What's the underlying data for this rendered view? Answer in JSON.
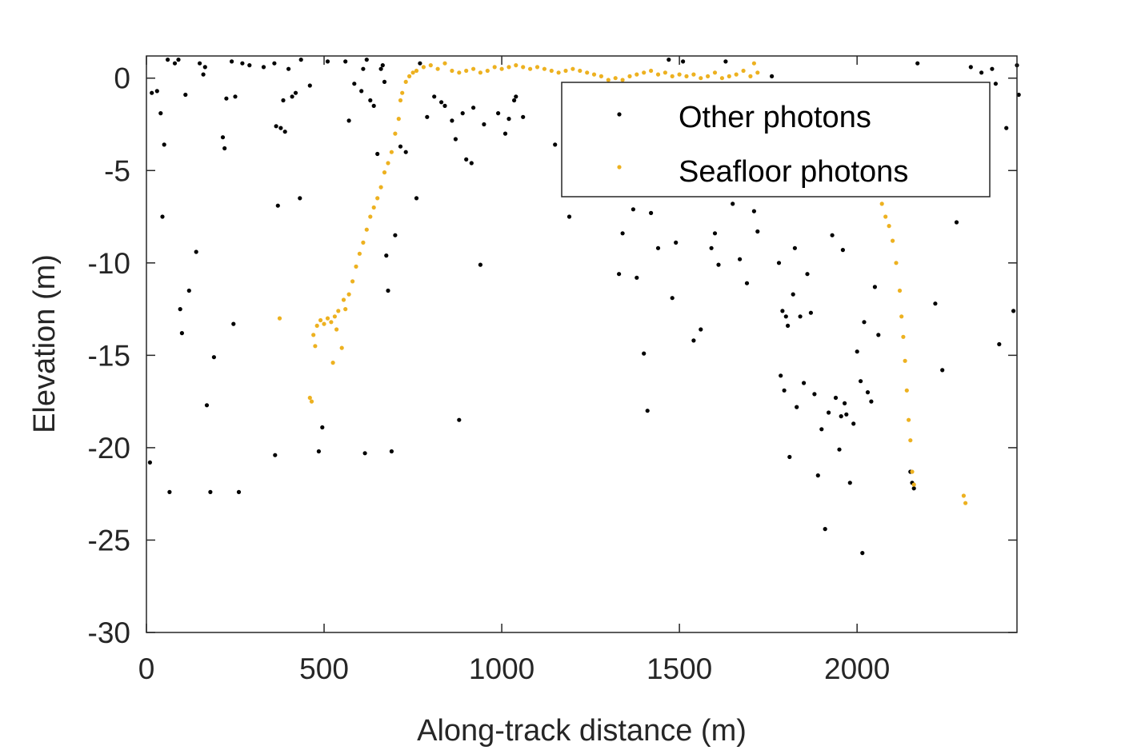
{
  "chart_data": {
    "type": "scatter",
    "title": "",
    "xlabel": "Along-track distance (m)",
    "ylabel": "Elevation (m)",
    "xlim": [
      0,
      2450
    ],
    "ylim": [
      -30,
      1.2
    ],
    "xticks": [
      0,
      500,
      1000,
      1500,
      2000
    ],
    "yticks": [
      0,
      -5,
      -10,
      -15,
      -20,
      -25,
      -30
    ],
    "grid": false,
    "legend_position": "top-right",
    "series": [
      {
        "name": "Other photons",
        "color": "#000000",
        "points": [
          [
            10,
            -20.8
          ],
          [
            15,
            -0.8
          ],
          [
            30,
            -0.7
          ],
          [
            40,
            -1.9
          ],
          [
            45,
            -7.5
          ],
          [
            50,
            -3.6
          ],
          [
            60,
            1.0
          ],
          [
            65,
            -22.4
          ],
          [
            80,
            0.8
          ],
          [
            90,
            1.0
          ],
          [
            95,
            -12.5
          ],
          [
            100,
            -13.8
          ],
          [
            110,
            -0.9
          ],
          [
            120,
            -11.5
          ],
          [
            140,
            -9.4
          ],
          [
            150,
            0.8
          ],
          [
            160,
            0.2
          ],
          [
            165,
            0.6
          ],
          [
            170,
            -17.7
          ],
          [
            180,
            -22.4
          ],
          [
            190,
            -15.1
          ],
          [
            215,
            -3.2
          ],
          [
            220,
            -3.8
          ],
          [
            225,
            -1.1
          ],
          [
            240,
            0.9
          ],
          [
            245,
            -13.3
          ],
          [
            250,
            -1.0
          ],
          [
            260,
            -22.4
          ],
          [
            270,
            0.8
          ],
          [
            290,
            0.7
          ],
          [
            330,
            0.6
          ],
          [
            360,
            0.8
          ],
          [
            362,
            -20.4
          ],
          [
            365,
            -2.6
          ],
          [
            370,
            -6.9
          ],
          [
            378,
            -2.7
          ],
          [
            385,
            -1.2
          ],
          [
            390,
            -2.9
          ],
          [
            400,
            0.5
          ],
          [
            410,
            -1.0
          ],
          [
            420,
            -0.8
          ],
          [
            432,
            -6.5
          ],
          [
            435,
            1.0
          ],
          [
            460,
            -0.4
          ],
          [
            485,
            -20.2
          ],
          [
            495,
            -18.9
          ],
          [
            510,
            0.9
          ],
          [
            560,
            0.9
          ],
          [
            570,
            -2.3
          ],
          [
            585,
            -0.3
          ],
          [
            605,
            -0.7
          ],
          [
            610,
            0.5
          ],
          [
            615,
            -20.3
          ],
          [
            620,
            1.0
          ],
          [
            630,
            -1.2
          ],
          [
            640,
            -1.5
          ],
          [
            650,
            -4.1
          ],
          [
            660,
            0.5
          ],
          [
            665,
            0.7
          ],
          [
            670,
            -0.2
          ],
          [
            675,
            -9.6
          ],
          [
            680,
            -11.5
          ],
          [
            690,
            -20.2
          ],
          [
            700,
            -8.5
          ],
          [
            715,
            -3.7
          ],
          [
            730,
            -4.0
          ],
          [
            760,
            -6.5
          ],
          [
            770,
            0.8
          ],
          [
            790,
            -2.1
          ],
          [
            810,
            -1.0
          ],
          [
            830,
            -1.3
          ],
          [
            840,
            -1.5
          ],
          [
            860,
            -2.3
          ],
          [
            870,
            -3.3
          ],
          [
            880,
            -18.5
          ],
          [
            890,
            -1.9
          ],
          [
            900,
            -4.4
          ],
          [
            915,
            -4.6
          ],
          [
            920,
            -1.6
          ],
          [
            940,
            -10.1
          ],
          [
            950,
            -2.5
          ],
          [
            990,
            -1.9
          ],
          [
            1010,
            -3.0
          ],
          [
            1020,
            -2.2
          ],
          [
            1035,
            -1.2
          ],
          [
            1040,
            -1.0
          ],
          [
            1060,
            -2.1
          ],
          [
            1150,
            -3.6
          ],
          [
            1190,
            -7.5
          ],
          [
            1330,
            -10.6
          ],
          [
            1340,
            -8.4
          ],
          [
            1370,
            -7.1
          ],
          [
            1380,
            -10.8
          ],
          [
            1400,
            -14.9
          ],
          [
            1410,
            -18.0
          ],
          [
            1420,
            -7.3
          ],
          [
            1440,
            -9.2
          ],
          [
            1470,
            1.0
          ],
          [
            1480,
            -11.9
          ],
          [
            1490,
            -8.9
          ],
          [
            1510,
            0.9
          ],
          [
            1540,
            -14.2
          ],
          [
            1560,
            -13.6
          ],
          [
            1590,
            -9.2
          ],
          [
            1600,
            -8.4
          ],
          [
            1610,
            -10.1
          ],
          [
            1630,
            0.9
          ],
          [
            1650,
            -6.8
          ],
          [
            1670,
            -9.8
          ],
          [
            1690,
            -11.1
          ],
          [
            1710,
            -7.2
          ],
          [
            1720,
            -8.3
          ],
          [
            1740,
            -1.3
          ],
          [
            1760,
            0.1
          ],
          [
            1780,
            -10.0
          ],
          [
            1785,
            -16.1
          ],
          [
            1790,
            -12.6
          ],
          [
            1795,
            -16.9
          ],
          [
            1800,
            -12.9
          ],
          [
            1805,
            -13.4
          ],
          [
            1810,
            -20.5
          ],
          [
            1820,
            -11.7
          ],
          [
            1825,
            -9.2
          ],
          [
            1830,
            -17.8
          ],
          [
            1840,
            -12.9
          ],
          [
            1850,
            -16.5
          ],
          [
            1860,
            -10.6
          ],
          [
            1870,
            -12.7
          ],
          [
            1880,
            -17.1
          ],
          [
            1890,
            -21.5
          ],
          [
            1900,
            -19.0
          ],
          [
            1910,
            -24.4
          ],
          [
            1920,
            -18.1
          ],
          [
            1930,
            -8.5
          ],
          [
            1940,
            -17.3
          ],
          [
            1950,
            -20.1
          ],
          [
            1955,
            -18.3
          ],
          [
            1960,
            -9.3
          ],
          [
            1965,
            -17.6
          ],
          [
            1970,
            -18.2
          ],
          [
            1980,
            -21.9
          ],
          [
            1990,
            -18.7
          ],
          [
            2000,
            -14.8
          ],
          [
            2010,
            -16.4
          ],
          [
            2015,
            -25.7
          ],
          [
            2020,
            -13.2
          ],
          [
            2030,
            -17.0
          ],
          [
            2040,
            -17.5
          ],
          [
            2050,
            -11.3
          ],
          [
            2060,
            -13.9
          ],
          [
            2070,
            -3.1
          ],
          [
            2080,
            -0.9
          ],
          [
            2100,
            -2.1
          ],
          [
            2150,
            -21.3
          ],
          [
            2155,
            -21.9
          ],
          [
            2160,
            -22.2
          ],
          [
            2170,
            0.8
          ],
          [
            2220,
            -12.2
          ],
          [
            2240,
            -15.8
          ],
          [
            2280,
            -7.8
          ],
          [
            2320,
            0.6
          ],
          [
            2350,
            0.3
          ],
          [
            2380,
            0.5
          ],
          [
            2390,
            -0.3
          ],
          [
            2400,
            -14.4
          ],
          [
            2420,
            -2.7
          ],
          [
            2440,
            -12.6
          ],
          [
            2450,
            0.7
          ],
          [
            2455,
            -0.9
          ]
        ]
      },
      {
        "name": "Seafloor photons",
        "color": "#EDB120",
        "points": [
          [
            375,
            -13.0
          ],
          [
            460,
            -17.3
          ],
          [
            465,
            -17.5
          ],
          [
            470,
            -13.9
          ],
          [
            475,
            -14.5
          ],
          [
            480,
            -13.4
          ],
          [
            490,
            -13.1
          ],
          [
            500,
            -13.3
          ],
          [
            510,
            -13.0
          ],
          [
            520,
            -13.2
          ],
          [
            525,
            -15.4
          ],
          [
            530,
            -12.9
          ],
          [
            535,
            -13.6
          ],
          [
            540,
            -12.6
          ],
          [
            550,
            -14.6
          ],
          [
            555,
            -12.0
          ],
          [
            560,
            -12.5
          ],
          [
            570,
            -11.7
          ],
          [
            580,
            -11.0
          ],
          [
            590,
            -10.2
          ],
          [
            600,
            -9.5
          ],
          [
            610,
            -8.9
          ],
          [
            620,
            -8.2
          ],
          [
            630,
            -7.5
          ],
          [
            640,
            -7.0
          ],
          [
            650,
            -6.5
          ],
          [
            660,
            -5.9
          ],
          [
            670,
            -5.1
          ],
          [
            680,
            -4.6
          ],
          [
            690,
            -4.0
          ],
          [
            700,
            -3.0
          ],
          [
            710,
            -2.2
          ],
          [
            715,
            -1.2
          ],
          [
            720,
            -0.8
          ],
          [
            730,
            -0.2
          ],
          [
            740,
            0.1
          ],
          [
            750,
            0.3
          ],
          [
            760,
            0.4
          ],
          [
            780,
            0.6
          ],
          [
            800,
            0.7
          ],
          [
            820,
            0.5
          ],
          [
            840,
            0.8
          ],
          [
            860,
            0.4
          ],
          [
            880,
            0.3
          ],
          [
            900,
            0.4
          ],
          [
            920,
            0.5
          ],
          [
            940,
            0.3
          ],
          [
            960,
            0.4
          ],
          [
            980,
            0.6
          ],
          [
            1000,
            0.5
          ],
          [
            1020,
            0.6
          ],
          [
            1040,
            0.7
          ],
          [
            1060,
            0.6
          ],
          [
            1080,
            0.5
          ],
          [
            1100,
            0.6
          ],
          [
            1120,
            0.5
          ],
          [
            1140,
            0.4
          ],
          [
            1160,
            0.3
          ],
          [
            1180,
            0.4
          ],
          [
            1200,
            0.5
          ],
          [
            1220,
            0.4
          ],
          [
            1240,
            0.3
          ],
          [
            1260,
            0.2
          ],
          [
            1280,
            0.1
          ],
          [
            1300,
            -0.1
          ],
          [
            1320,
            0.0
          ],
          [
            1340,
            -0.1
          ],
          [
            1360,
            0.1
          ],
          [
            1380,
            0.2
          ],
          [
            1400,
            0.3
          ],
          [
            1420,
            0.4
          ],
          [
            1440,
            0.2
          ],
          [
            1460,
            0.3
          ],
          [
            1480,
            0.1
          ],
          [
            1500,
            0.2
          ],
          [
            1520,
            0.1
          ],
          [
            1540,
            0.2
          ],
          [
            1560,
            0.0
          ],
          [
            1580,
            0.1
          ],
          [
            1600,
            0.3
          ],
          [
            1620,
            0.0
          ],
          [
            1640,
            0.1
          ],
          [
            1660,
            0.2
          ],
          [
            1680,
            0.4
          ],
          [
            1700,
            0.1
          ],
          [
            1710,
            0.8
          ],
          [
            1720,
            0.3
          ],
          [
            1730,
            -0.4
          ],
          [
            2030,
            -5.8
          ],
          [
            2050,
            -6.0
          ],
          [
            2060,
            -5.6
          ],
          [
            2070,
            -6.8
          ],
          [
            2080,
            -7.5
          ],
          [
            2090,
            -8.0
          ],
          [
            2100,
            -8.8
          ],
          [
            2110,
            -10.0
          ],
          [
            2120,
            -11.5
          ],
          [
            2125,
            -12.9
          ],
          [
            2130,
            -14.0
          ],
          [
            2135,
            -15.3
          ],
          [
            2140,
            -16.9
          ],
          [
            2145,
            -18.5
          ],
          [
            2150,
            -19.6
          ],
          [
            2155,
            -21.3
          ],
          [
            2160,
            -22.0
          ],
          [
            2300,
            -22.6
          ],
          [
            2305,
            -23.0
          ]
        ]
      }
    ]
  }
}
